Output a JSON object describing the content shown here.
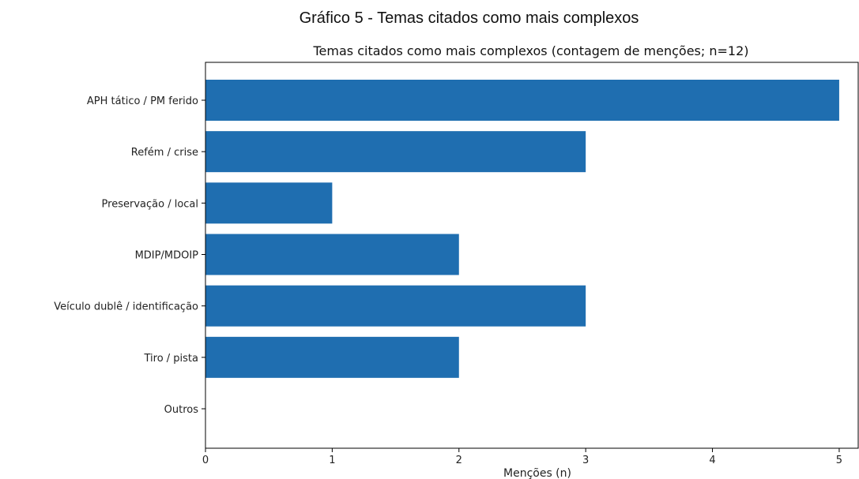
{
  "figure_caption": "Gráfico 5 - Temas citados como mais complexos",
  "colors": {
    "bar": "#1f6eb0",
    "axis": "#000000"
  },
  "chart_data": {
    "type": "bar",
    "orientation": "horizontal",
    "title": "Temas citados como mais complexos (contagem de menções; n=12)",
    "xlabel": "Menções (n)",
    "ylabel": "",
    "categories": [
      "APH tático / PM ferido",
      "Refém / crise",
      "Preservação / local",
      "MDIP/MDOIP",
      "Veículo dublê / identificação",
      "Tiro / pista",
      "Outros"
    ],
    "values": [
      5,
      3,
      1,
      2,
      3,
      2,
      0
    ],
    "xlim": [
      0,
      5.15
    ],
    "xticks": [
      "0",
      "1",
      "2",
      "3",
      "4",
      "5"
    ],
    "grid": false
  }
}
